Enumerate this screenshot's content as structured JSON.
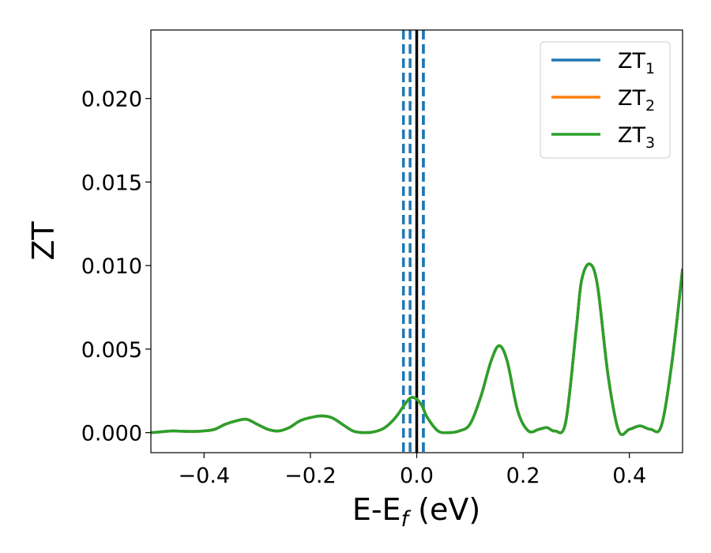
{
  "chart_data": {
    "type": "line",
    "xlabel_main": "E-E",
    "xlabel_sub": "f",
    "xlabel_unit": " (eV)",
    "ylabel": "ZT",
    "xlim": [
      -0.5,
      0.5
    ],
    "ylim": [
      -0.0012,
      0.0241
    ],
    "xticks": [
      -0.4,
      -0.2,
      0.0,
      0.2,
      0.4
    ],
    "xtick_labels": [
      "−0.4",
      "−0.2",
      "0.0",
      "0.2",
      "0.4"
    ],
    "yticks": [
      0.0,
      0.005,
      0.01,
      0.015,
      0.02
    ],
    "ytick_labels": [
      "0.000",
      "0.005",
      "0.010",
      "0.015",
      "0.020"
    ],
    "grid": false,
    "legend_position": "top-right",
    "vlines": [
      {
        "x": 0.0,
        "color": "#000000",
        "style": "solid"
      },
      {
        "x": -0.0125,
        "color": "#1f77b4",
        "style": "dashed"
      },
      {
        "x": 0.0125,
        "color": "#1f77b4",
        "style": "dashed"
      },
      {
        "x": -0.025,
        "color": "#1f77b4",
        "style": "dashed"
      },
      {
        "x": 0.0125,
        "color": "#1f77b4",
        "style": "dashed"
      }
    ],
    "x": [
      -0.5,
      -0.48,
      -0.46,
      -0.44,
      -0.42,
      -0.4,
      -0.38,
      -0.36,
      -0.34,
      -0.32,
      -0.3,
      -0.28,
      -0.26,
      -0.24,
      -0.22,
      -0.2,
      -0.18,
      -0.16,
      -0.14,
      -0.12,
      -0.1,
      -0.08,
      -0.06,
      -0.04,
      -0.02,
      -0.01,
      0.0,
      0.01,
      0.02,
      0.04,
      0.06,
      0.08,
      0.1,
      0.12,
      0.14,
      0.155,
      0.17,
      0.19,
      0.21,
      0.23,
      0.245,
      0.26,
      0.28,
      0.3,
      0.31,
      0.325,
      0.34,
      0.36,
      0.38,
      0.4,
      0.42,
      0.44,
      0.46,
      0.48,
      0.5
    ],
    "series": [
      {
        "name": "ZT",
        "name_sub": "1",
        "color": "#1f77b4",
        "values": [
          0.0,
          5e-05,
          0.0001,
          8e-05,
          7e-05,
          0.0001,
          0.0002,
          0.0005,
          0.0007,
          0.0008,
          0.0005,
          0.0002,
          0.0001,
          0.0003,
          0.0007,
          0.0009,
          0.001,
          0.0009,
          0.0005,
          0.0001,
          0.0,
          5e-05,
          0.0003,
          0.0009,
          0.0018,
          0.0021,
          0.002,
          0.0016,
          0.0009,
          0.0001,
          0.0,
          0.0001,
          0.0005,
          0.0021,
          0.0043,
          0.0052,
          0.0043,
          0.0013,
          0.0001,
          0.0002,
          0.0003,
          0.0001,
          0.0006,
          0.0062,
          0.0091,
          0.0101,
          0.0088,
          0.0034,
          0.0001,
          0.0002,
          0.0004,
          0.0002,
          0.0004,
          0.0042,
          0.0098
        ]
      },
      {
        "name": "ZT",
        "name_sub": "2",
        "color": "#ff7f0e",
        "values": [
          0.0,
          5e-05,
          0.0001,
          8e-05,
          7e-05,
          0.0001,
          0.0002,
          0.0005,
          0.0007,
          0.0008,
          0.0005,
          0.0002,
          0.0001,
          0.0003,
          0.0007,
          0.0009,
          0.001,
          0.0009,
          0.0005,
          0.0001,
          0.0,
          5e-05,
          0.0003,
          0.0009,
          0.0018,
          0.0021,
          0.002,
          0.0016,
          0.0009,
          0.0001,
          0.0,
          0.0001,
          0.0005,
          0.0021,
          0.0043,
          0.0052,
          0.0043,
          0.0013,
          0.0001,
          0.0002,
          0.0003,
          0.0001,
          0.0006,
          0.0062,
          0.0091,
          0.0101,
          0.0088,
          0.0034,
          0.0001,
          0.0002,
          0.0004,
          0.0002,
          0.0004,
          0.0042,
          0.0098
        ]
      },
      {
        "name": "ZT",
        "name_sub": "3",
        "color": "#2ca02c",
        "values": [
          0.0,
          5e-05,
          0.0001,
          8e-05,
          7e-05,
          0.0001,
          0.0002,
          0.0005,
          0.0007,
          0.0008,
          0.0005,
          0.0002,
          0.0001,
          0.0003,
          0.0007,
          0.0009,
          0.001,
          0.0009,
          0.0005,
          0.0001,
          0.0,
          5e-05,
          0.0003,
          0.0009,
          0.0018,
          0.0021,
          0.002,
          0.0016,
          0.0009,
          0.0001,
          0.0,
          0.0001,
          0.0005,
          0.0021,
          0.0043,
          0.0052,
          0.0043,
          0.0013,
          0.0001,
          0.0002,
          0.0003,
          0.0001,
          0.0006,
          0.0062,
          0.0091,
          0.0101,
          0.0088,
          0.0034,
          0.0001,
          0.0002,
          0.0004,
          0.0002,
          0.0004,
          0.0042,
          0.0098
        ]
      }
    ]
  }
}
